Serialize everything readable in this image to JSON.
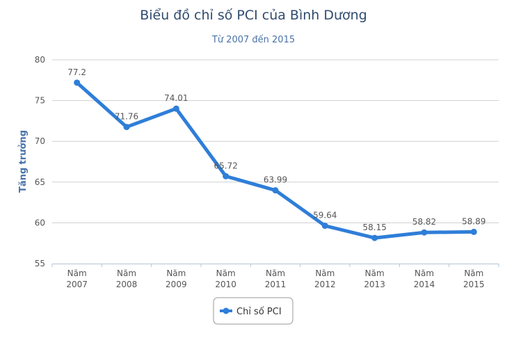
{
  "chart_data": {
    "type": "line",
    "title": "Biểu đồ chỉ số PCI của Bình Dương",
    "subtitle": "Từ 2007 đến 2015",
    "ylabel": "Tăng trưởng",
    "xlabel": "",
    "categories": [
      [
        "Năm",
        "2007"
      ],
      [
        "Năm",
        "2008"
      ],
      [
        "Năm",
        "2009"
      ],
      [
        "Năm",
        "2010"
      ],
      [
        "Năm",
        "2011"
      ],
      [
        "Năm",
        "2012"
      ],
      [
        "Năm",
        "2013"
      ],
      [
        "Năm",
        "2014"
      ],
      [
        "Năm",
        "2015"
      ]
    ],
    "series": [
      {
        "name": "Chỉ số PCI",
        "color": "#2f7ed8",
        "values": [
          77.2,
          71.76,
          74.01,
          65.72,
          63.99,
          59.64,
          58.15,
          58.82,
          58.89
        ],
        "labels": [
          "77.2",
          "71.76",
          "74.01",
          "65.72",
          "63.99",
          "59.64",
          "58.15",
          "58.82",
          "58.89"
        ]
      }
    ],
    "ylim": [
      55,
      80
    ],
    "yticks": [
      55,
      60,
      65,
      70,
      75,
      80
    ],
    "grid": true,
    "legend_position": "bottom-center"
  }
}
